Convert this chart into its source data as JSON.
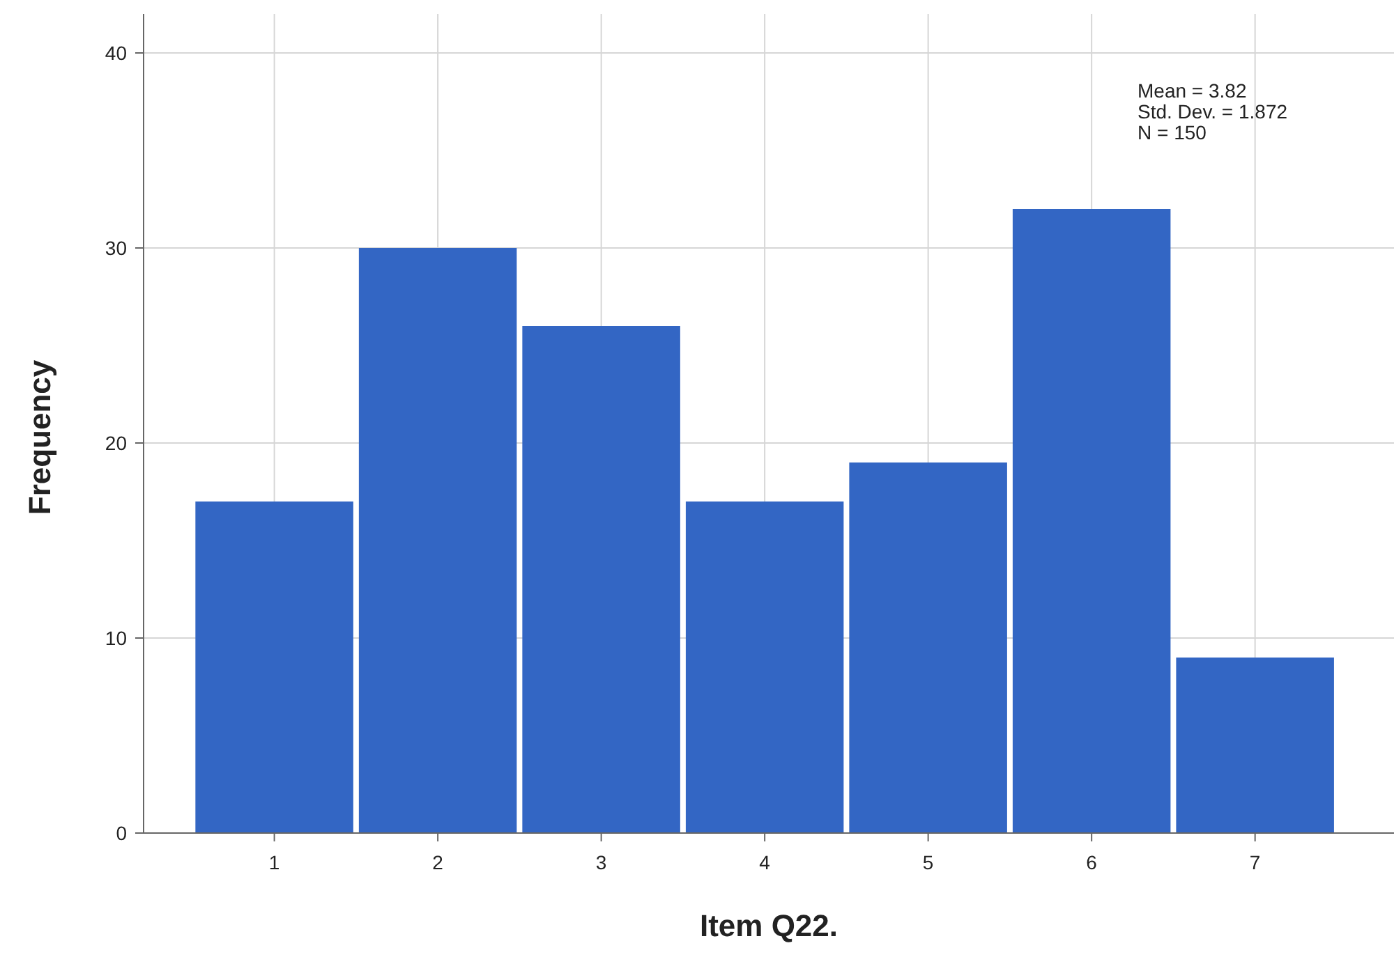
{
  "chart_data": {
    "type": "histogram",
    "xlabel": "Item Q22.",
    "ylabel": "Frequency",
    "bins": [
      0.5,
      1.5,
      2.5,
      3.5,
      4.5,
      5.5,
      6.5,
      7.5
    ],
    "values": [
      17,
      30,
      26,
      17,
      19,
      32,
      9
    ],
    "color": "#3366c4",
    "xlim": [
      0.2,
      7.85
    ],
    "xticks": [
      1,
      2,
      3,
      4,
      5,
      6,
      7
    ],
    "ylim": [
      0,
      42
    ],
    "yticks": [
      0,
      10,
      20,
      30,
      40
    ],
    "grid": true,
    "annotations": [
      "Mean = 3.82",
      "Std. Dev. = 1.872",
      "N = 150"
    ]
  }
}
